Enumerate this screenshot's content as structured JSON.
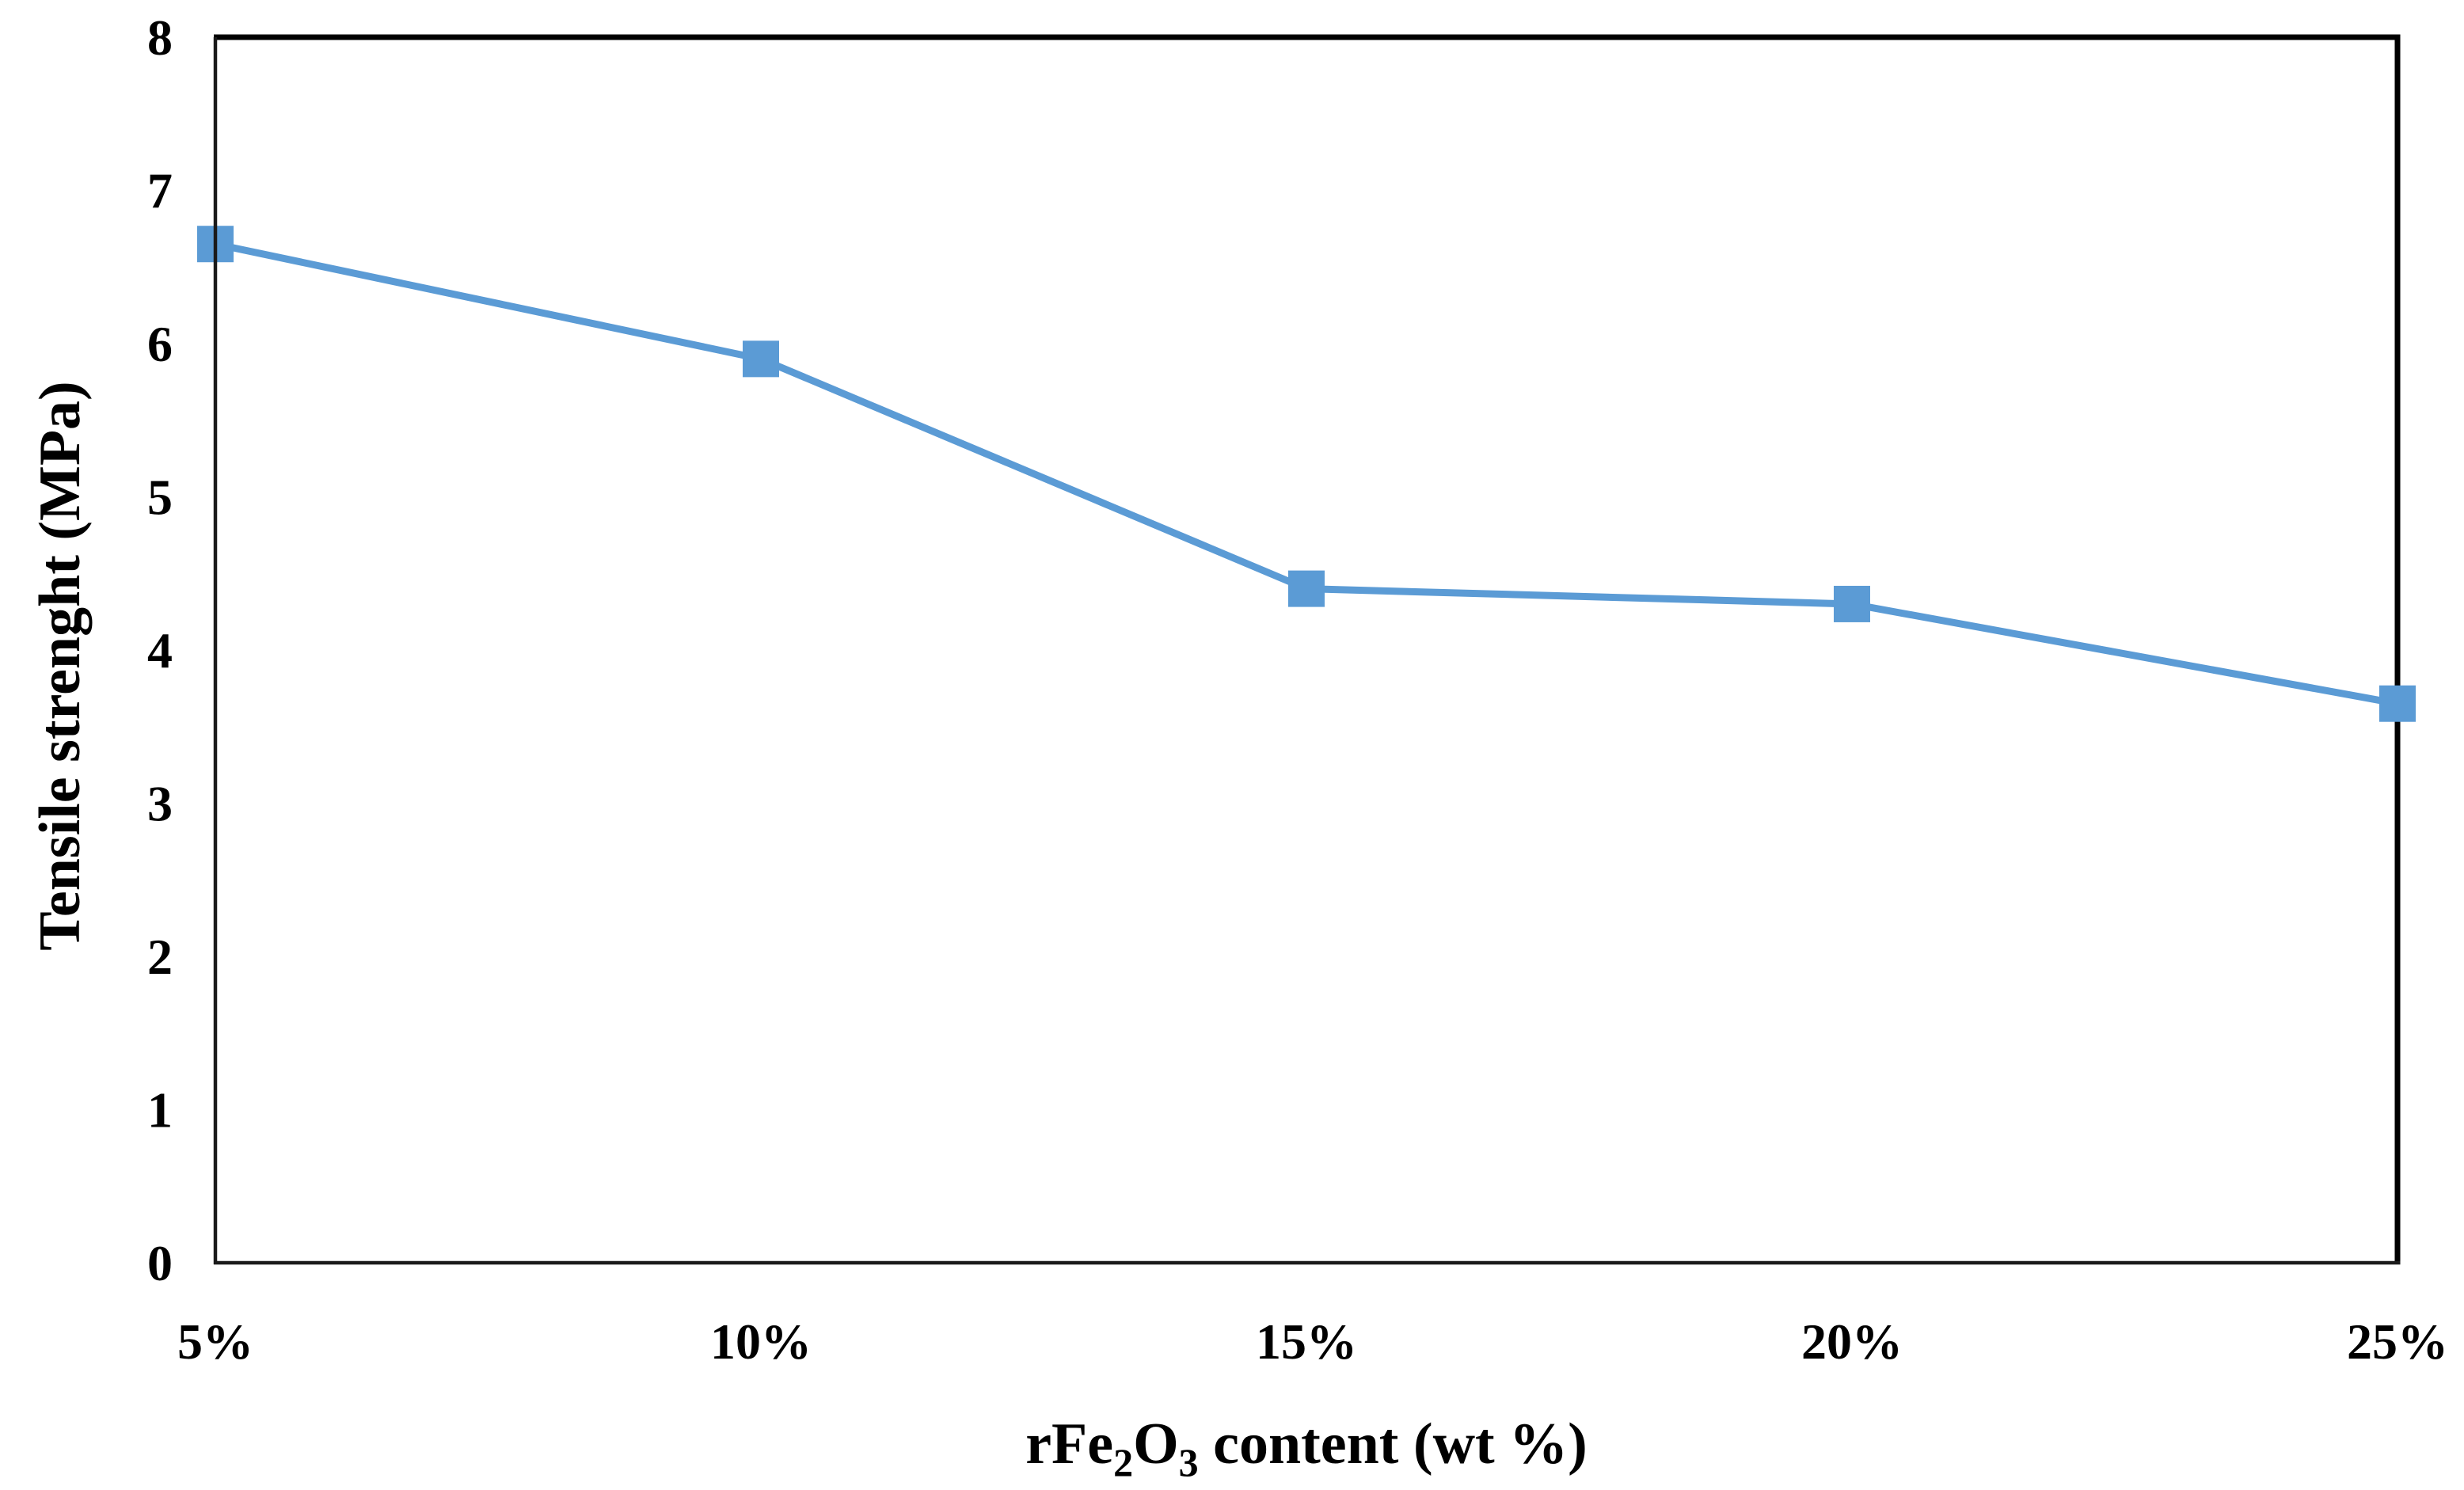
{
  "figure": {
    "background_color": "#ffffff",
    "plot_border_color": "#000000"
  },
  "chart_data": {
    "type": "line",
    "title": "",
    "categories": [
      "5%",
      "10%",
      "15%",
      "20%",
      "25%"
    ],
    "series": [
      {
        "name": "Tensile strenght",
        "values": [
          6.65,
          5.9,
          4.4,
          4.3,
          3.65
        ],
        "color": "#5B9BD5",
        "marker": "square"
      }
    ],
    "xlabel": "rFe2O3 content (wt %)",
    "xlabel_parts": [
      {
        "text": "rFe",
        "sub": false
      },
      {
        "text": "2",
        "sub": true
      },
      {
        "text": "O",
        "sub": false
      },
      {
        "text": "3",
        "sub": true
      },
      {
        "text": " content (wt %)",
        "sub": false
      }
    ],
    "ylabel": "Tensile strenght (MPa)",
    "ylim": [
      0,
      8
    ],
    "yticks": [
      0,
      1,
      2,
      3,
      4,
      5,
      6,
      7,
      8
    ],
    "grid": false,
    "legend": "none",
    "axis_ranges": {
      "x_type": "category",
      "y_min": 0,
      "y_max": 8,
      "y_step": 1
    }
  }
}
